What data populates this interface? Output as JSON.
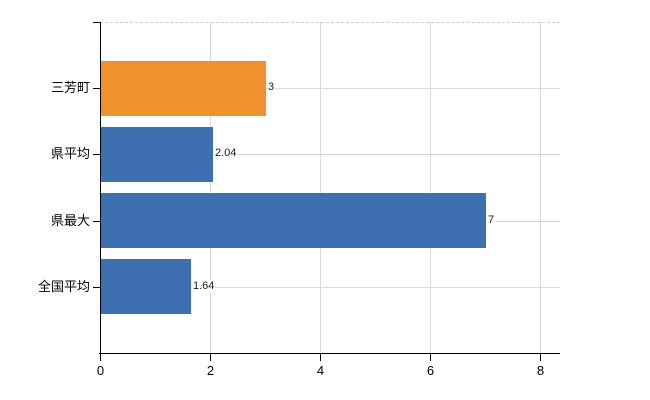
{
  "chart_data": {
    "type": "bar",
    "orientation": "horizontal",
    "title": "",
    "categories": [
      "三芳町",
      "県平均",
      "県最大",
      "全国平均"
    ],
    "values": [
      3,
      2.04,
      7,
      1.64
    ],
    "value_labels": [
      "3",
      "2.04",
      "7",
      "1.64"
    ],
    "bar_colors": [
      "#f0902f",
      "#3e6fb0",
      "#3e6fb0",
      "#3e6fb0"
    ],
    "xlim": [
      0,
      8
    ],
    "x_ticks": [
      0,
      2,
      4,
      6,
      8
    ],
    "x_tick_labels": [
      "0",
      "2",
      "4",
      "6",
      "8"
    ],
    "grid": true,
    "legend": null
  },
  "colors": {
    "highlight_bar": "#f0902f",
    "default_bar": "#3e6fb0",
    "gridline": "#d9d9d9",
    "axis": "#000000",
    "text": "#1a1a1a",
    "background": "#ffffff"
  }
}
